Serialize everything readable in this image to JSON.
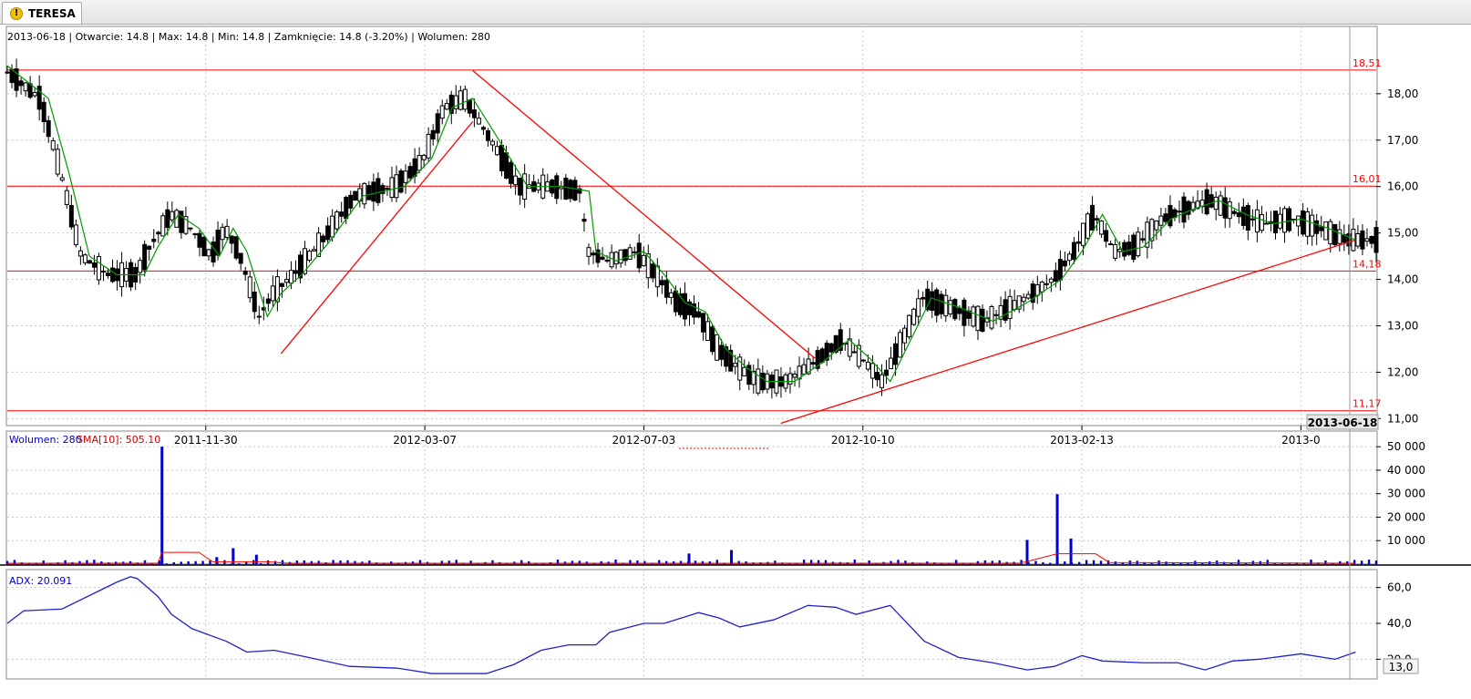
{
  "tab": {
    "title": "TERESA",
    "icon": "alert-icon"
  },
  "price_info": {
    "text": "2013-06-18 | Otwarcie: 14.8 | Max: 14.8 | Min: 14.8 | Zamknięcie: 14.8 (-3.20%)  | Wolumen: 280"
  },
  "volume_info": {
    "label": "Wolumen: 280",
    "sma_label": "SMA[10]: 505.10"
  },
  "adx_info": {
    "label": "ADX: 20.091"
  },
  "cursor": {
    "date": "2013-06-18",
    "adx_value": "13,0"
  },
  "colors": {
    "candle": "#000000",
    "sma": "#009900",
    "lines": "#ff0000",
    "volume": "#0000cc",
    "volume_sma": "#ff0000",
    "adx": "#2020cc",
    "grid": "#c8c8c8"
  },
  "chart_data": [
    {
      "type": "candlestick",
      "x_tick_labels": [
        "2011-11-30",
        "2012-03-07",
        "2012-07-03",
        "2012-10-10",
        "2013-02-13",
        "2013-0"
      ],
      "y_tick_labels": [
        "11,00",
        "12,00",
        "13,00",
        "14,00",
        "15,00",
        "16,00",
        "17,00",
        "18,00"
      ],
      "ylim": [
        10.85,
        18.9
      ],
      "grid": true,
      "horizontal_levels": [
        {
          "value": 18.51,
          "label": "18,51"
        },
        {
          "value": 16.01,
          "label": "16,01"
        },
        {
          "value": 14.18,
          "label": "14,18"
        },
        {
          "value": 11.17,
          "label": "11,17"
        }
      ],
      "trend_lines": [
        {
          "from": [
            0.2,
            12.4
          ],
          "to": [
            0.34,
            17.4
          ]
        },
        {
          "from": [
            0.34,
            18.5
          ],
          "to": [
            0.59,
            12.3
          ]
        },
        {
          "from": [
            0.565,
            10.9
          ],
          "to": [
            0.985,
            14.85
          ]
        }
      ],
      "candles": [
        [
          14.8,
          14.9,
          13.9,
          14.1
        ],
        [
          17.3,
          17.7,
          17.0,
          17.6
        ],
        [
          17.7,
          18.0,
          17.6,
          17.9
        ]
      ],
      "sma_line": [
        [
          0.0,
          18.6
        ],
        [
          0.03,
          17.9
        ],
        [
          0.045,
          16.3
        ],
        [
          0.06,
          14.5
        ],
        [
          0.08,
          14.1
        ],
        [
          0.1,
          14.1
        ],
        [
          0.11,
          14.7
        ],
        [
          0.125,
          15.4
        ],
        [
          0.14,
          15.1
        ],
        [
          0.155,
          14.5
        ],
        [
          0.165,
          15.1
        ],
        [
          0.175,
          14.6
        ],
        [
          0.19,
          13.2
        ],
        [
          0.2,
          13.7
        ],
        [
          0.215,
          14.1
        ],
        [
          0.235,
          14.8
        ],
        [
          0.26,
          15.8
        ],
        [
          0.29,
          16.0
        ],
        [
          0.31,
          16.6
        ],
        [
          0.325,
          17.7
        ],
        [
          0.34,
          17.9
        ],
        [
          0.355,
          17.2
        ],
        [
          0.38,
          16.0
        ],
        [
          0.405,
          16.0
        ],
        [
          0.425,
          15.9
        ],
        [
          0.43,
          14.6
        ],
        [
          0.445,
          14.4
        ],
        [
          0.465,
          14.6
        ],
        [
          0.48,
          14.1
        ],
        [
          0.495,
          13.5
        ],
        [
          0.51,
          13.3
        ],
        [
          0.525,
          12.5
        ],
        [
          0.54,
          12.1
        ],
        [
          0.555,
          11.8
        ],
        [
          0.575,
          11.8
        ],
        [
          0.595,
          12.2
        ],
        [
          0.615,
          12.7
        ],
        [
          0.63,
          12.3
        ],
        [
          0.645,
          11.8
        ],
        [
          0.66,
          12.7
        ],
        [
          0.675,
          13.6
        ],
        [
          0.695,
          13.4
        ],
        [
          0.72,
          13.1
        ],
        [
          0.745,
          13.5
        ],
        [
          0.77,
          14.0
        ],
        [
          0.785,
          14.6
        ],
        [
          0.8,
          15.4
        ],
        [
          0.815,
          14.6
        ],
        [
          0.83,
          14.7
        ],
        [
          0.85,
          15.3
        ],
        [
          0.865,
          15.5
        ],
        [
          0.885,
          15.7
        ],
        [
          0.905,
          15.4
        ],
        [
          0.925,
          15.2
        ],
        [
          0.945,
          15.3
        ],
        [
          0.965,
          15.1
        ],
        [
          0.985,
          14.85
        ]
      ]
    },
    {
      "type": "bar",
      "title": "Wolumen",
      "y_tick_labels": [
        "10 000",
        "20 000",
        "30 000",
        "40 000",
        "50 000"
      ],
      "ylim": [
        0,
        52000
      ],
      "spikes": [
        [
          0.113,
          50000
        ],
        [
          0.165,
          6800
        ],
        [
          0.153,
          3000
        ],
        [
          0.745,
          10300
        ],
        [
          0.767,
          29800
        ],
        [
          0.777,
          10900
        ],
        [
          0.529,
          6000
        ],
        [
          0.182,
          4000
        ],
        [
          0.498,
          4500
        ]
      ],
      "sma_series": [
        [
          0.0,
          400
        ],
        [
          0.11,
          400
        ],
        [
          0.113,
          5000
        ],
        [
          0.14,
          5000
        ],
        [
          0.15,
          1000
        ],
        [
          0.19,
          1000
        ],
        [
          0.205,
          400
        ],
        [
          0.74,
          400
        ],
        [
          0.767,
          4400
        ],
        [
          0.795,
          4400
        ],
        [
          0.805,
          700
        ],
        [
          0.985,
          400
        ]
      ]
    },
    {
      "type": "line",
      "title": "ADX",
      "y_tick_labels": [
        "20,0",
        "40,0",
        "60,0"
      ],
      "ylim": [
        10,
        70
      ],
      "series": [
        {
          "values": [
            [
              0.0,
              40
            ],
            [
              0.012,
              47
            ],
            [
              0.04,
              48
            ],
            [
              0.08,
              63
            ],
            [
              0.09,
              66
            ],
            [
              0.095,
              65
            ],
            [
              0.11,
              55
            ],
            [
              0.12,
              45
            ],
            [
              0.135,
              37
            ],
            [
              0.16,
              30
            ],
            [
              0.175,
              24
            ],
            [
              0.195,
              25
            ],
            [
              0.22,
              21
            ],
            [
              0.25,
              16
            ],
            [
              0.285,
              15
            ],
            [
              0.31,
              12
            ],
            [
              0.35,
              12
            ],
            [
              0.37,
              17
            ],
            [
              0.39,
              25
            ],
            [
              0.41,
              28
            ],
            [
              0.43,
              28
            ],
            [
              0.44,
              35
            ],
            [
              0.465,
              40
            ],
            [
              0.48,
              40
            ],
            [
              0.505,
              46
            ],
            [
              0.52,
              43
            ],
            [
              0.535,
              38
            ],
            [
              0.56,
              42
            ],
            [
              0.585,
              50
            ],
            [
              0.605,
              49
            ],
            [
              0.62,
              45
            ],
            [
              0.645,
              50
            ],
            [
              0.67,
              30
            ],
            [
              0.695,
              21
            ],
            [
              0.72,
              18
            ],
            [
              0.745,
              14
            ],
            [
              0.765,
              16
            ],
            [
              0.785,
              22
            ],
            [
              0.8,
              19
            ],
            [
              0.83,
              18
            ],
            [
              0.855,
              18
            ],
            [
              0.875,
              14
            ],
            [
              0.895,
              19
            ],
            [
              0.915,
              20
            ],
            [
              0.945,
              23
            ],
            [
              0.97,
              20
            ],
            [
              0.985,
              24
            ]
          ]
        }
      ]
    }
  ]
}
